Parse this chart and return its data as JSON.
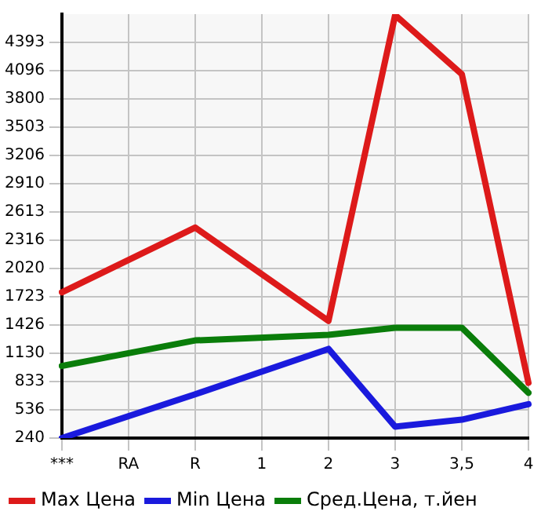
{
  "chart_data": {
    "type": "line",
    "categories": [
      "***",
      "RA",
      "R",
      "1",
      "2",
      "3",
      "3,5",
      "4"
    ],
    "series": [
      {
        "name": "Max Цена",
        "color": "#dd1a1a",
        "values": [
          1770,
          null,
          2450,
          null,
          1470,
          4680,
          4060,
          820
        ]
      },
      {
        "name": "Min Цена",
        "color": "#1a1add",
        "values": [
          240,
          null,
          700,
          null,
          1176,
          360,
          433,
          596
        ]
      },
      {
        "name": "Сред.Цена, т.йен",
        "color": "#0a7d0a",
        "values": [
          997,
          null,
          1265,
          null,
          1324,
          1398,
          1398,
          715
        ]
      }
    ],
    "ylim": [
      240,
      4690
    ],
    "yticks": [
      240,
      536,
      833,
      1130,
      1426,
      1723,
      2020,
      2316,
      2613,
      2910,
      3206,
      3503,
      3800,
      4096,
      4393
    ],
    "grid": true,
    "legend": "bottom",
    "marker": "none",
    "line_style": "solid"
  }
}
